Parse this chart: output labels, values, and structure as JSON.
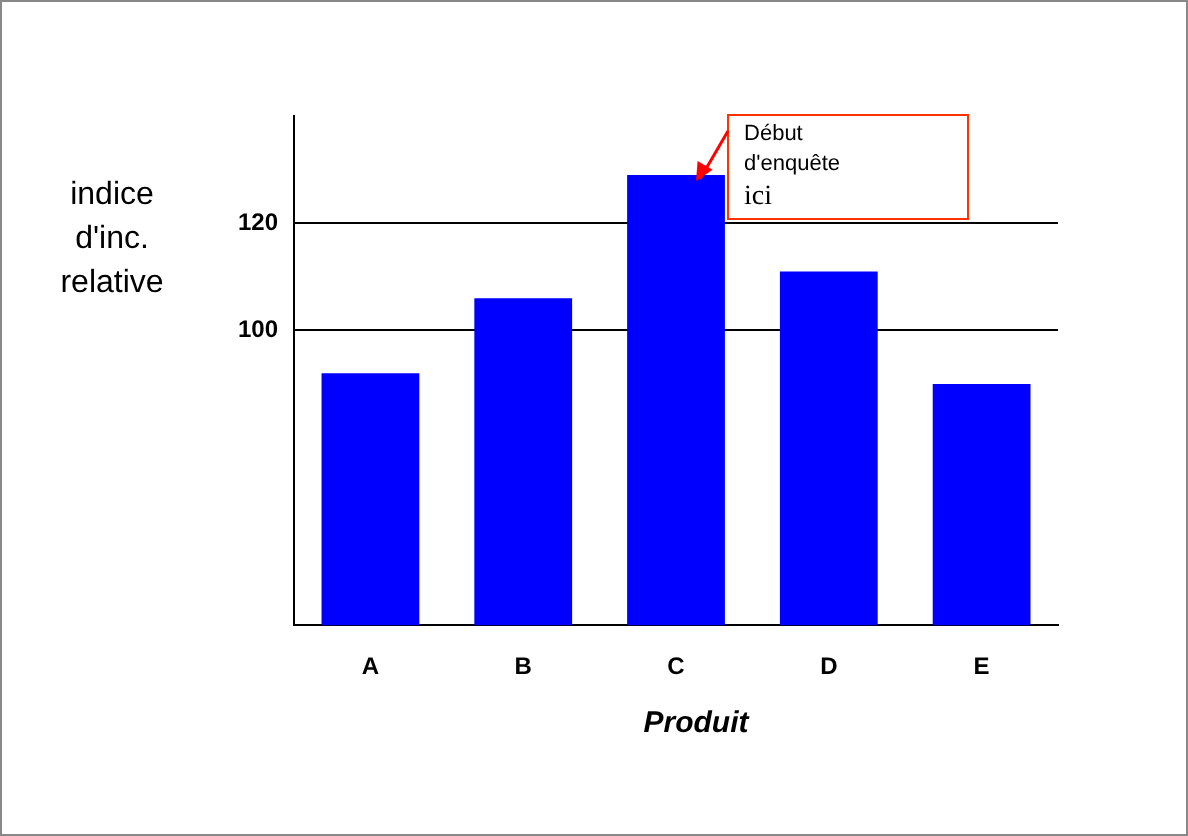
{
  "chart_data": {
    "type": "bar",
    "ylabel": "indice d'inc. relative",
    "xlabel": "Produit",
    "categories": [
      "A",
      "B",
      "C",
      "D",
      "E"
    ],
    "values": [
      92,
      106,
      129,
      111,
      90
    ],
    "color": "#0000ff",
    "ylim": [
      45,
      140
    ],
    "yticks": [
      100,
      120
    ],
    "grid": "y",
    "legend": false,
    "annotations": [
      {
        "text": "Début d'enquête ici",
        "x": "C",
        "y": 129
      }
    ]
  }
}
